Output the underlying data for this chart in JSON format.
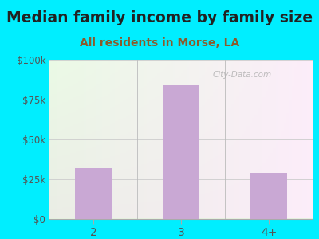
{
  "title": "Median family income by family size",
  "subtitle": "All residents in Morse, LA",
  "categories": [
    "2",
    "3",
    "4+"
  ],
  "values": [
    32000,
    84000,
    29000
  ],
  "bar_color": "#c9a8d4",
  "ylim": [
    0,
    100000
  ],
  "yticks": [
    0,
    25000,
    50000,
    75000,
    100000
  ],
  "ytick_labels": [
    "$0",
    "$25k",
    "$50k",
    "$75k",
    "$100k"
  ],
  "background_outer": "#00eeff",
  "background_inner": "#e8f5e2",
  "title_fontsize": 13.5,
  "subtitle_fontsize": 10,
  "title_color": "#222222",
  "subtitle_color": "#8b5a2b",
  "tick_color": "#555555",
  "watermark": "City-Data.com",
  "grid_color": "#cccccc",
  "divider_color": "#bbbbbb"
}
